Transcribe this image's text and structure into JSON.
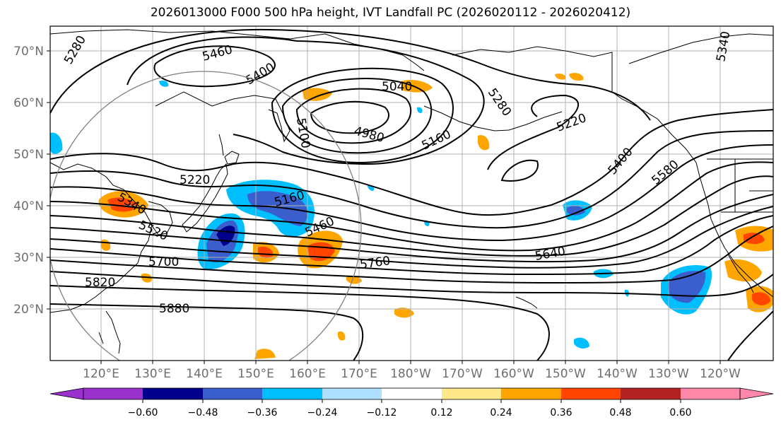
{
  "title": "2026013000 F000 500 hPa height, IVT Landfall PC (2026020112 - 2026020412)",
  "map": {
    "lat_labels": [
      "70°N",
      "60°N",
      "50°N",
      "40°N",
      "30°N",
      "20°N"
    ],
    "lon_labels": [
      "120°E",
      "130°E",
      "140°E",
      "150°E",
      "160°E",
      "170°E",
      "180°W",
      "170°W",
      "160°W",
      "150°W",
      "140°W",
      "130°W",
      "120°W"
    ],
    "contour_labels": [
      "5280",
      "5460",
      "5400",
      "5040",
      "5100",
      "4980",
      "5280",
      "5160",
      "5220",
      "5220",
      "5340",
      "5160",
      "5520",
      "5460",
      "5700",
      "5760",
      "5640",
      "5400",
      "5580",
      "5820",
      "5880",
      "5340"
    ],
    "colors": {
      "land_outline": "#000000",
      "grid": "#b0b0b0",
      "height_contour": "#000000",
      "circle": "#808080"
    }
  },
  "colorbar": {
    "ticks": [
      "−0.60",
      "−0.48",
      "−0.36",
      "−0.24",
      "−0.12",
      "0.12",
      "0.24",
      "0.36",
      "0.48",
      "0.60"
    ],
    "colors": [
      "#9932cc",
      "#00008b",
      "#3a5fcd",
      "#00bfff",
      "#b0e0ff",
      "#ffffff",
      "#ffe88a",
      "#ffa500",
      "#ff4500",
      "#b22222",
      "#ff88aa"
    ]
  }
}
